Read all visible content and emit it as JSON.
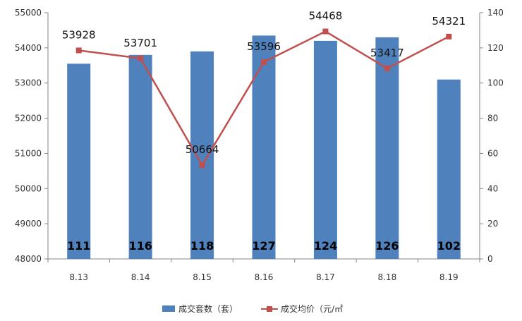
{
  "chart_data": {
    "type": "bar",
    "categories": [
      "8.13",
      "8.14",
      "8.15",
      "8.16",
      "8.17",
      "8.18",
      "8.19"
    ],
    "series": [
      {
        "name": "成交套数（套）",
        "type": "bar",
        "axis": "right",
        "values": [
          111,
          116,
          118,
          127,
          124,
          126,
          102
        ],
        "color": "#4F81BD"
      },
      {
        "name": "成交均价（元/㎡",
        "type": "line",
        "axis": "left",
        "values": [
          53928,
          53701,
          50664,
          53596,
          54468,
          53417,
          54321
        ],
        "color": "#C0504D"
      }
    ],
    "left_axis": {
      "ylim": [
        48000,
        55000
      ],
      "ticks": [
        "48000",
        "49000",
        "50000",
        "51000",
        "52000",
        "53000",
        "54000",
        "55000"
      ]
    },
    "right_axis": {
      "ylim": [
        0,
        140
      ],
      "ticks": [
        "0",
        "20",
        "40",
        "60",
        "80",
        "100",
        "120",
        "140"
      ]
    },
    "title": "",
    "xlabel": "",
    "ylabel": "",
    "grid": false,
    "legend_position": "bottom"
  }
}
